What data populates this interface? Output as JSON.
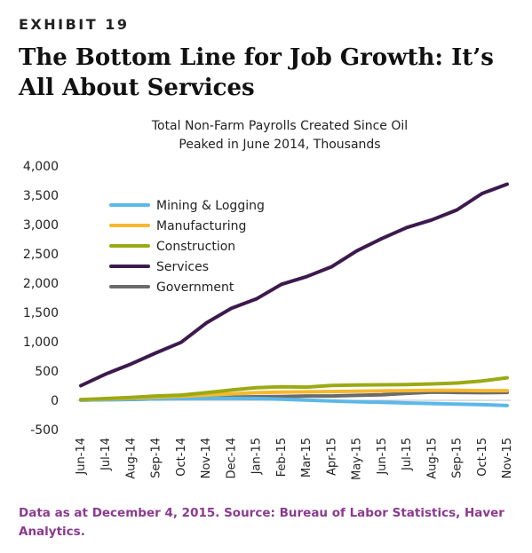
{
  "exhibit_label": "EXHIBIT 19",
  "title": "The Bottom Line for Job Growth: It’s All About Services",
  "footer": "Data as at December 4, 2015. Source: Bureau of Labor Statistics, Haver Analytics.",
  "chart_data": {
    "type": "line",
    "title_lines": [
      "Total Non-Farm Payrolls Created Since Oil",
      "Peaked in June 2014, Thousands"
    ],
    "x": [
      "Jun-14",
      "Jul-14",
      "Aug-14",
      "Sep-14",
      "Oct-14",
      "Nov-14",
      "Dec-14",
      "Jan-15",
      "Feb-15",
      "Mar-15",
      "Apr-15",
      "May-15",
      "Jun-15",
      "Jul-15",
      "Aug-15",
      "Sep-15",
      "Oct-15",
      "Nov-15"
    ],
    "ylim": [
      -500,
      4000
    ],
    "yticks": [
      -500,
      0,
      500,
      1000,
      1500,
      2000,
      2500,
      3000,
      3500,
      4000
    ],
    "ytick_labels": [
      "-500",
      "0",
      "500",
      "1,000",
      "1,500",
      "2,000",
      "2,500",
      "3,000",
      "3,500",
      "4,000"
    ],
    "grid": false,
    "legend_position": "top-left",
    "series": [
      {
        "name": "Mining & Logging",
        "color": "#5bb8e8",
        "values": [
          5,
          12,
          20,
          25,
          30,
          35,
          35,
          30,
          20,
          5,
          -10,
          -25,
          -35,
          -45,
          -55,
          -65,
          -75,
          -90
        ]
      },
      {
        "name": "Manufacturing",
        "color": "#f5b82e",
        "values": [
          10,
          25,
          40,
          55,
          70,
          90,
          110,
          130,
          140,
          145,
          150,
          155,
          160,
          165,
          170,
          170,
          165,
          165
        ]
      },
      {
        "name": "Construction",
        "color": "#9aaa14",
        "values": [
          10,
          30,
          50,
          75,
          90,
          130,
          175,
          215,
          230,
          225,
          255,
          260,
          265,
          270,
          280,
          295,
          330,
          385
        ]
      },
      {
        "name": "Services",
        "color": "#3d1a4d",
        "values": [
          250,
          450,
          620,
          810,
          990,
          1320,
          1570,
          1730,
          1980,
          2110,
          2280,
          2550,
          2760,
          2950,
          3080,
          3250,
          3530,
          3690
        ]
      },
      {
        "name": "Government",
        "color": "#6b6b6b",
        "values": [
          5,
          10,
          15,
          25,
          35,
          45,
          55,
          60,
          65,
          75,
          75,
          85,
          95,
          120,
          140,
          135,
          130,
          135
        ]
      }
    ]
  }
}
